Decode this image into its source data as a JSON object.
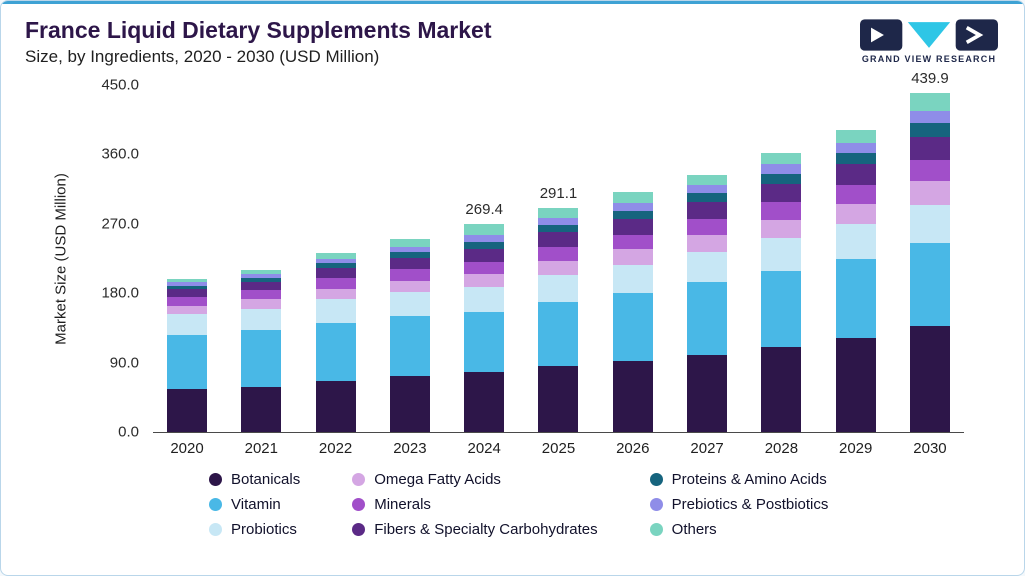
{
  "header": {
    "title": "France Liquid Dietary Supplements Market",
    "subtitle": "Size, by Ingredients, 2020 - 2030 (USD Million)",
    "logo_text": "GRAND VIEW RESEARCH"
  },
  "chart_data": {
    "type": "bar",
    "stacked": true,
    "title": "France Liquid Dietary Supplements Market Size, by Ingredients, 2020 - 2030 (USD Million)",
    "xlabel": "",
    "ylabel": "Market Size (USD Million)",
    "ylim": [
      0,
      450
    ],
    "yticks": [
      0,
      90,
      180,
      270,
      360,
      450
    ],
    "ytick_labels": [
      "0.0",
      "90.0",
      "180.0",
      "270.0",
      "360.0",
      "450.0"
    ],
    "grid": false,
    "legend_position": "bottom",
    "categories": [
      "2020",
      "2021",
      "2022",
      "2023",
      "2024",
      "2025",
      "2026",
      "2027",
      "2028",
      "2029",
      "2030"
    ],
    "series": [
      {
        "name": "Botanicals",
        "color": "#2d1649",
        "values": [
          56,
          59,
          66,
          72,
          78,
          85,
          92,
          100,
          110,
          122,
          137
        ]
      },
      {
        "name": "Vitamin",
        "color": "#49b8e6",
        "values": [
          70,
          73,
          76,
          78,
          78,
          83,
          88,
          94,
          99,
          103,
          108
        ]
      },
      {
        "name": "Probiotics",
        "color": "#c7e7f5",
        "values": [
          27,
          28,
          30,
          31,
          32,
          35,
          37,
          39,
          42,
          45,
          50
        ]
      },
      {
        "name": "Omega Fatty Acids",
        "color": "#d4a6e3",
        "values": [
          11,
          12,
          14,
          15,
          17,
          19,
          20,
          22,
          24,
          26,
          30
        ]
      },
      {
        "name": "Minerals",
        "color": "#a14fc9",
        "values": [
          11,
          12,
          14,
          15,
          16,
          18,
          19,
          21,
          23,
          25,
          28
        ]
      },
      {
        "name": "Fibers & Specialty Carbohydrates",
        "color": "#5b2a86",
        "values": [
          10,
          11,
          13,
          15,
          17,
          19,
          20,
          22,
          24,
          26,
          30
        ]
      },
      {
        "name": "Proteins & Amino Acids",
        "color": "#16647e",
        "values": [
          4.5,
          5,
          6,
          7,
          9,
          10,
          11,
          12,
          13,
          15,
          18
        ]
      },
      {
        "name": "Prebiotics & Postbiotics",
        "color": "#8f8de8",
        "values": [
          4.5,
          5,
          6,
          7,
          8,
          9,
          10,
          11,
          12,
          13,
          15
        ]
      },
      {
        "name": "Others",
        "color": "#7ad4c0",
        "values": [
          4,
          5,
          7,
          10,
          14.4,
          13.1,
          14,
          13,
          15,
          17,
          23.9
        ]
      }
    ],
    "value_labels": {
      "2024": "269.4",
      "2025": "291.1",
      "2030": "439.9"
    },
    "totals": [
      198,
      210,
      232,
      250,
      269.4,
      291.1,
      311,
      334,
      362,
      392,
      439.9
    ]
  },
  "legend": {
    "items": [
      {
        "label": "Botanicals",
        "color": "#2d1649"
      },
      {
        "label": "Omega Fatty Acids",
        "color": "#d4a6e3"
      },
      {
        "label": "Proteins & Amino Acids",
        "color": "#16647e"
      },
      {
        "label": "Vitamin",
        "color": "#49b8e6"
      },
      {
        "label": "Minerals",
        "color": "#a14fc9"
      },
      {
        "label": "Prebiotics & Postbiotics",
        "color": "#8f8de8"
      },
      {
        "label": "Probiotics",
        "color": "#c7e7f5"
      },
      {
        "label": "Fibers & Specialty Carbohydrates",
        "color": "#5b2a86"
      },
      {
        "label": "Others",
        "color": "#7ad4c0"
      }
    ]
  }
}
